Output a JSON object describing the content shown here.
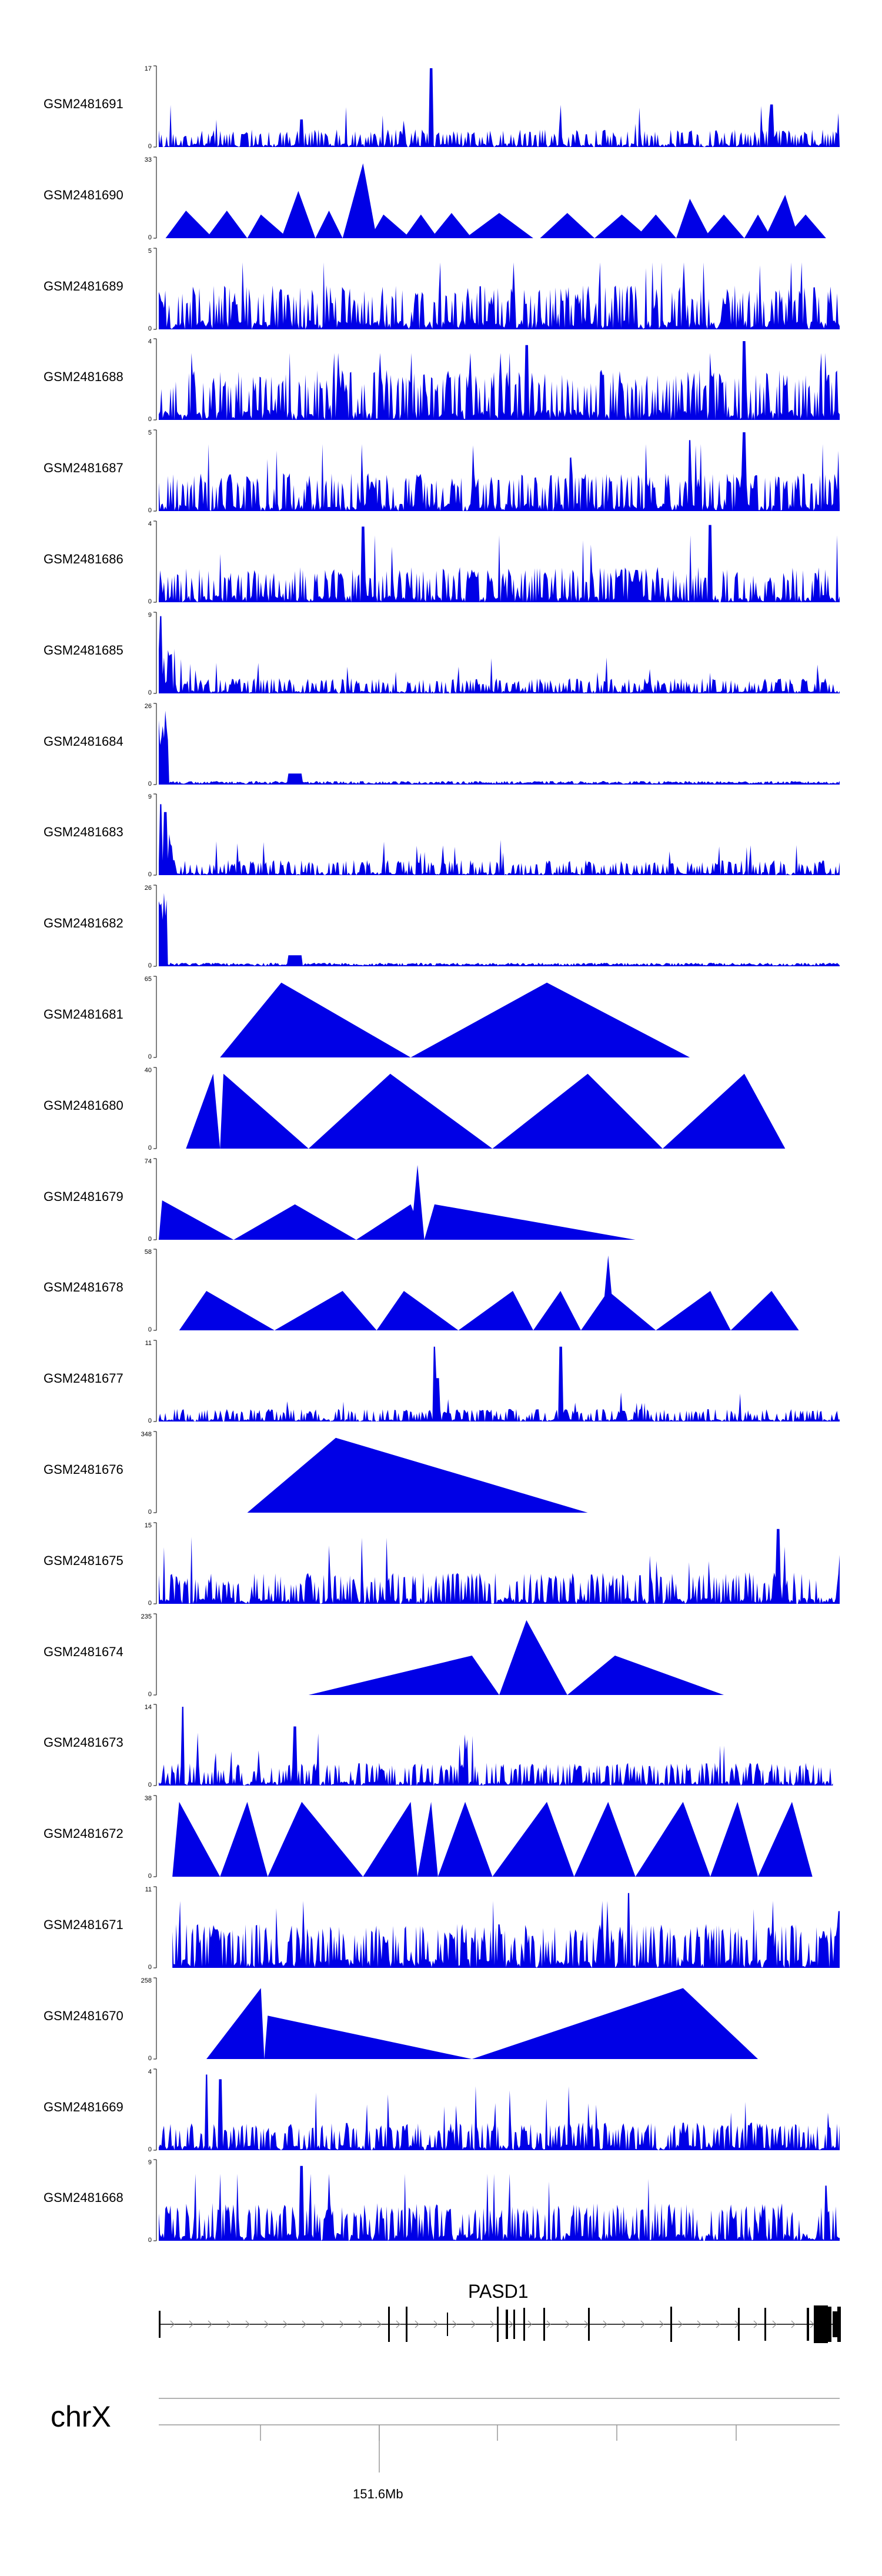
{
  "chart_data": {
    "type": "area",
    "title": "",
    "chromosome": "chrX",
    "gene": "PASD1",
    "coordinate_label": "151.6Mb",
    "series": [
      {
        "name": "GSM2481691",
        "ymax": 17,
        "shape": "dense",
        "base": 0.14,
        "seed": 11,
        "peaks": [
          [
            0.4,
            1.0
          ],
          [
            0.9,
            0.54
          ],
          [
            0.21,
            0.35
          ]
        ]
      },
      {
        "name": "GSM2481690",
        "ymax": 33,
        "shape": "tri",
        "seed": 12,
        "tris": [
          [
            0.01,
            0.04,
            0.08,
            0.35
          ],
          [
            0.07,
            0.1,
            0.13,
            0.35
          ],
          [
            0.13,
            0.15,
            0.19,
            0.3
          ],
          [
            0.18,
            0.205,
            0.23,
            0.6
          ],
          [
            0.23,
            0.25,
            0.27,
            0.35
          ],
          [
            0.27,
            0.3,
            0.32,
            0.95
          ],
          [
            0.31,
            0.33,
            0.37,
            0.3
          ],
          [
            0.36,
            0.385,
            0.41,
            0.3
          ],
          [
            0.4,
            0.43,
            0.46,
            0.32
          ],
          [
            0.45,
            0.5,
            0.55,
            0.32
          ],
          [
            0.56,
            0.6,
            0.64,
            0.32
          ],
          [
            0.64,
            0.68,
            0.72,
            0.3
          ],
          [
            0.7,
            0.73,
            0.76,
            0.3
          ],
          [
            0.76,
            0.78,
            0.81,
            0.5
          ],
          [
            0.8,
            0.83,
            0.86,
            0.3
          ],
          [
            0.86,
            0.88,
            0.9,
            0.3
          ],
          [
            0.89,
            0.92,
            0.94,
            0.55
          ],
          [
            0.92,
            0.95,
            0.98,
            0.3
          ]
        ]
      },
      {
        "name": "GSM2481689",
        "ymax": 5,
        "shape": "dense",
        "base": 0.35,
        "seed": 13,
        "peaks": []
      },
      {
        "name": "GSM2481688",
        "ymax": 4,
        "shape": "dense",
        "base": 0.4,
        "seed": 14,
        "peaks": [
          [
            0.54,
            0.95
          ],
          [
            0.86,
            1.0
          ]
        ]
      },
      {
        "name": "GSM2481687",
        "ymax": 5,
        "shape": "dense",
        "base": 0.3,
        "seed": 15,
        "peaks": [
          [
            0.86,
            1.0
          ],
          [
            0.78,
            0.9
          ]
        ]
      },
      {
        "name": "GSM2481686",
        "ymax": 4,
        "shape": "dense",
        "base": 0.28,
        "seed": 16,
        "peaks": [
          [
            0.3,
            0.96
          ],
          [
            0.81,
            0.98
          ]
        ]
      },
      {
        "name": "GSM2481685",
        "ymax": 9,
        "shape": "dense",
        "base": 0.12,
        "seed": 17,
        "peaks": [
          [
            0.003,
            0.98
          ]
        ],
        "left_bump": 0.6
      },
      {
        "name": "GSM2481684",
        "ymax": 26,
        "shape": "spike",
        "base": 0.03,
        "seed": 18,
        "spike": [
          0.0,
          0.015,
          0.95
        ]
      },
      {
        "name": "GSM2481683",
        "ymax": 9,
        "shape": "dense",
        "base": 0.12,
        "seed": 19,
        "peaks": [
          [
            0.003,
            0.9
          ],
          [
            0.01,
            0.8
          ]
        ],
        "left_bump": 0.55
      },
      {
        "name": "GSM2481682",
        "ymax": 26,
        "shape": "spike",
        "base": 0.03,
        "seed": 20,
        "spike": [
          0.0,
          0.012,
          0.98
        ]
      },
      {
        "name": "GSM2481681",
        "ymax": 65,
        "shape": "tri",
        "tris": [
          [
            0.09,
            0.18,
            0.37,
            0.95
          ],
          [
            0.37,
            0.57,
            0.78,
            0.95
          ]
        ]
      },
      {
        "name": "GSM2481680",
        "ymax": 40,
        "shape": "tri",
        "tris": [
          [
            0.04,
            0.08,
            0.09,
            0.95
          ],
          [
            0.09,
            0.095,
            0.22,
            0.95
          ],
          [
            0.22,
            0.34,
            0.49,
            0.95
          ],
          [
            0.49,
            0.63,
            0.74,
            0.95
          ],
          [
            0.74,
            0.86,
            0.92,
            0.95
          ]
        ]
      },
      {
        "name": "GSM2481679",
        "ymax": 74,
        "shape": "tri",
        "tris": [
          [
            0.0,
            0.005,
            0.11,
            0.5
          ],
          [
            0.0,
            0.01,
            0.11,
            0.35
          ],
          [
            0.11,
            0.2,
            0.29,
            0.45
          ],
          [
            0.29,
            0.37,
            0.39,
            0.45
          ],
          [
            0.37,
            0.38,
            0.39,
            0.95
          ],
          [
            0.39,
            0.405,
            0.7,
            0.45
          ]
        ]
      },
      {
        "name": "GSM2481678",
        "ymax": 58,
        "shape": "tri",
        "tris": [
          [
            0.03,
            0.07,
            0.17,
            0.5
          ],
          [
            0.17,
            0.27,
            0.32,
            0.5
          ],
          [
            0.32,
            0.36,
            0.44,
            0.5
          ],
          [
            0.44,
            0.52,
            0.55,
            0.5
          ],
          [
            0.55,
            0.59,
            0.62,
            0.5
          ],
          [
            0.62,
            0.66,
            0.73,
            0.5
          ],
          [
            0.65,
            0.66,
            0.67,
            0.95
          ],
          [
            0.73,
            0.81,
            0.84,
            0.5
          ],
          [
            0.84,
            0.9,
            0.94,
            0.5
          ]
        ]
      },
      {
        "name": "GSM2481677",
        "ymax": 11,
        "shape": "dense",
        "base": 0.1,
        "seed": 21,
        "peaks": [
          [
            0.405,
            0.95
          ],
          [
            0.59,
            0.95
          ],
          [
            0.41,
            0.55
          ]
        ]
      },
      {
        "name": "GSM2481676",
        "ymax": 348,
        "shape": "tri",
        "tris": [
          [
            0.13,
            0.26,
            0.63,
            0.95
          ]
        ]
      },
      {
        "name": "GSM2481675",
        "ymax": 15,
        "shape": "dense",
        "base": 0.25,
        "seed": 22,
        "peaks": [
          [
            0.91,
            0.95
          ]
        ]
      },
      {
        "name": "GSM2481674",
        "ymax": 235,
        "shape": "tri",
        "tris": [
          [
            0.22,
            0.46,
            0.5,
            0.5
          ],
          [
            0.5,
            0.54,
            0.6,
            0.95
          ],
          [
            0.6,
            0.67,
            0.83,
            0.5
          ]
        ]
      },
      {
        "name": "GSM2481673",
        "ymax": 14,
        "shape": "dense",
        "base": 0.18,
        "seed": 23,
        "peaks": [
          [
            0.035,
            1.0
          ],
          [
            0.2,
            0.75
          ]
        ],
        "end": 0.99
      },
      {
        "name": "GSM2481672",
        "ymax": 38,
        "shape": "tri",
        "tris": [
          [
            0.02,
            0.03,
            0.09,
            0.95
          ],
          [
            0.09,
            0.13,
            0.16,
            0.95
          ],
          [
            0.16,
            0.21,
            0.3,
            0.95
          ],
          [
            0.3,
            0.37,
            0.38,
            0.95
          ],
          [
            0.38,
            0.4,
            0.41,
            0.95
          ],
          [
            0.41,
            0.45,
            0.49,
            0.95
          ],
          [
            0.49,
            0.57,
            0.61,
            0.95
          ],
          [
            0.61,
            0.66,
            0.7,
            0.95
          ],
          [
            0.7,
            0.77,
            0.81,
            0.95
          ],
          [
            0.81,
            0.85,
            0.88,
            0.95
          ],
          [
            0.88,
            0.93,
            0.96,
            0.95
          ]
        ]
      },
      {
        "name": "GSM2481671",
        "ymax": 11,
        "shape": "dense",
        "base": 0.35,
        "seed": 24,
        "peaks": [
          [
            0.69,
            0.95
          ],
          [
            1.0,
            0.72
          ]
        ],
        "start": 0.02
      },
      {
        "name": "GSM2481670",
        "ymax": 258,
        "shape": "tri",
        "tris": [
          [
            0.07,
            0.15,
            0.155,
            0.9
          ],
          [
            0.155,
            0.16,
            0.46,
            0.55
          ],
          [
            0.46,
            0.77,
            0.88,
            0.9
          ]
        ]
      },
      {
        "name": "GSM2481669",
        "ymax": 4,
        "shape": "dense",
        "base": 0.22,
        "seed": 25,
        "peaks": [
          [
            0.07,
            0.96
          ],
          [
            0.09,
            0.9
          ]
        ]
      },
      {
        "name": "GSM2481668",
        "ymax": 9,
        "shape": "dense",
        "base": 0.3,
        "seed": 26,
        "peaks": [
          [
            0.21,
            0.95
          ],
          [
            0.98,
            0.7
          ]
        ]
      }
    ]
  },
  "colors": {
    "track": "#0000e6",
    "axis": "#000000",
    "gene": "#000000"
  }
}
